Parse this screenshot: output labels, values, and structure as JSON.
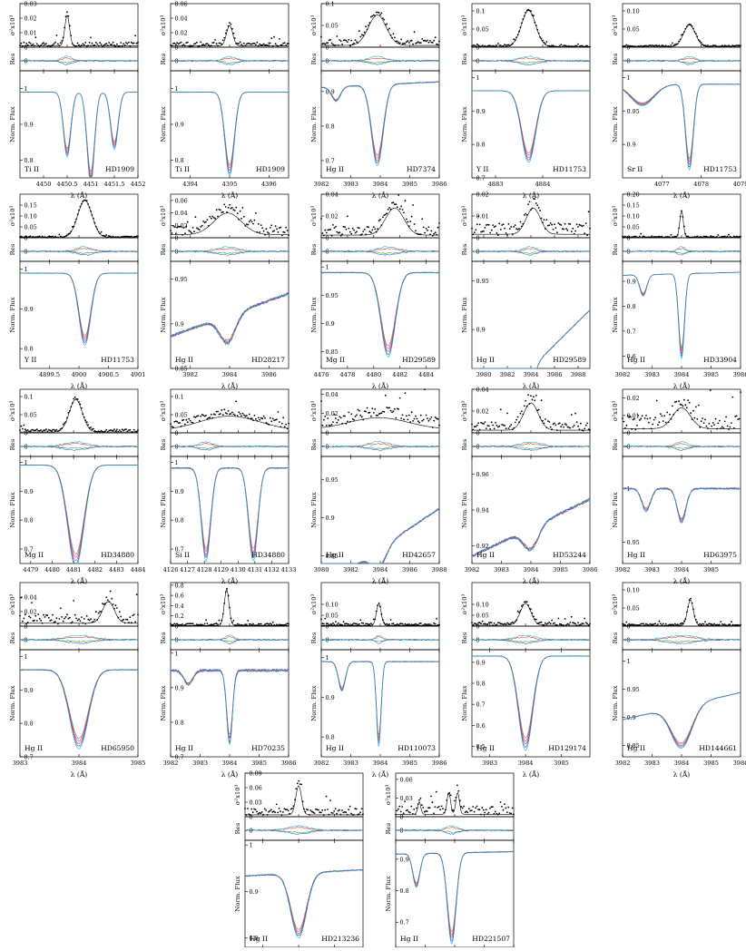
{
  "figure": {
    "xlabel": "λ (Å)",
    "top_ylabel": "σ²x10³",
    "mid_ylabel": "Res",
    "bot_ylabel": "Norm. Flux",
    "colors": {
      "points": "#000000",
      "fit": "#000000",
      "green": "#22aa22",
      "red": "#e03030",
      "blue": "#3050e0",
      "cyan": "#20b0c0",
      "magenta": "#c040c0",
      "olive": "#8a8a20"
    }
  },
  "chart_data": [
    {
      "type": "line",
      "element": "Ti II",
      "star": "HD1909",
      "xlim": [
        4449.5,
        4452
      ],
      "xticks": [
        "4450",
        "4450.5",
        "4451",
        "4451.5",
        "4452"
      ],
      "top_ylim": [
        0,
        0.03
      ],
      "top_ticks": [
        "0",
        "0.01",
        "0.02",
        "0.03"
      ],
      "flux_ylim": [
        0.75,
        1.05
      ],
      "flux_ticks": [
        "0.8",
        "0.9",
        "1"
      ],
      "lines": [
        {
          "c": 4450.5,
          "d": 0.17,
          "w": 0.08
        },
        {
          "c": 4451.0,
          "d": 0.24,
          "w": 0.08
        },
        {
          "c": 4451.5,
          "d": 0.15,
          "w": 0.08
        }
      ],
      "peaks": [
        {
          "c": 4450.5,
          "h": 0.021,
          "w": 0.05
        }
      ],
      "continuum": 0.99,
      "slope": 0,
      "noise": 0.002
    },
    {
      "type": "line",
      "element": "Ti II",
      "star": "HD1909",
      "xlim": [
        4393.5,
        4396.5
      ],
      "xticks": [
        "4394",
        "4395",
        "4396"
      ],
      "top_ylim": [
        0,
        0.06
      ],
      "top_ticks": [
        "0",
        "0.02",
        "0.04",
        "0.06"
      ],
      "flux_ylim": [
        0.75,
        1.05
      ],
      "flux_ticks": [
        "0.8",
        "0.9",
        "1"
      ],
      "lines": [
        {
          "c": 4395.0,
          "d": 0.22,
          "w": 0.12
        }
      ],
      "peaks": [
        {
          "c": 4395.0,
          "h": 0.028,
          "w": 0.08
        }
      ],
      "continuum": 0.99,
      "slope": 0,
      "noise": 0.004
    },
    {
      "type": "line",
      "element": "Hg II",
      "star": "HD7374",
      "xlim": [
        3982,
        3986
      ],
      "xticks": [
        "3982",
        "3983",
        "3984",
        "3985",
        "3986"
      ],
      "top_ylim": [
        0,
        0.1
      ],
      "top_ticks": [
        "0",
        "0.05",
        "0.1"
      ],
      "flux_ylim": [
        0.65,
        0.96
      ],
      "flux_ticks": [
        "0.7",
        "0.8",
        "0.9"
      ],
      "lines": [
        {
          "c": 3983.9,
          "d": 0.22,
          "w": 0.2
        },
        {
          "c": 3982.5,
          "d": 0.04,
          "w": 0.15
        }
      ],
      "peaks": [
        {
          "c": 3983.9,
          "h": 0.07,
          "w": 0.3
        }
      ],
      "continuum": 0.92,
      "slope": 0.004,
      "noise": 0.01
    },
    {
      "type": "line",
      "element": "Y II",
      "star": "HD11753",
      "xlim": [
        4882.5,
        4885
      ],
      "xticks": [
        "4883",
        "4884"
      ],
      "top_ylim": [
        0,
        0.12
      ],
      "top_ticks": [
        "0",
        "0.05",
        "0.1"
      ],
      "flux_ylim": [
        0.7,
        1.02
      ],
      "flux_ticks": [
        "0.7",
        "0.8",
        "0.9",
        "1"
      ],
      "lines": [
        {
          "c": 4883.7,
          "d": 0.2,
          "w": 0.15
        }
      ],
      "peaks": [
        {
          "c": 4883.7,
          "h": 0.1,
          "w": 0.15
        }
      ],
      "continuum": 0.96,
      "slope": 0,
      "noise": 0.003
    },
    {
      "type": "line",
      "element": "Sr II",
      "star": "HD11753",
      "xlim": [
        4076,
        4079
      ],
      "xticks": [
        "4077",
        "4078",
        "4079"
      ],
      "top_ylim": [
        0,
        0.12
      ],
      "top_ticks": [
        "0",
        "0.05",
        "0.10"
      ],
      "flux_ylim": [
        0.85,
        1.01
      ],
      "flux_ticks": [
        "0.9",
        "0.95",
        "1"
      ],
      "lines": [
        {
          "c": 4077.7,
          "d": 0.12,
          "w": 0.1
        },
        {
          "c": 4076.5,
          "d": 0.03,
          "w": 0.3
        }
      ],
      "peaks": [
        {
          "c": 4077.7,
          "h": 0.06,
          "w": 0.15
        }
      ],
      "continuum": 0.99,
      "slope": 0,
      "noise": 0.003
    },
    {
      "type": "line",
      "element": "Y II",
      "star": "HD11753",
      "xlim": [
        4899,
        4901
      ],
      "xticks": [
        "4899.5",
        "4900",
        "4900.5",
        "4901"
      ],
      "top_ylim": [
        0,
        0.2
      ],
      "top_ticks": [
        "0",
        "0.05",
        "0.10",
        "0.15"
      ],
      "flux_ylim": [
        0.75,
        1.02
      ],
      "flux_ticks": [
        "0.8",
        "0.9",
        "1"
      ],
      "lines": [
        {
          "c": 4900.1,
          "d": 0.17,
          "w": 0.1
        }
      ],
      "peaks": [
        {
          "c": 4900.1,
          "h": 0.17,
          "w": 0.12
        }
      ],
      "continuum": 0.99,
      "slope": 0,
      "noise": 0.004
    },
    {
      "type": "line",
      "element": "Hg II",
      "star": "HD28217",
      "xlim": [
        3981,
        3987
      ],
      "xticks": [
        "3982",
        "3984",
        "3986"
      ],
      "top_ylim": [
        0,
        0.07
      ],
      "top_ticks": [
        "0",
        "0.02",
        "0.04",
        "0.06"
      ],
      "flux_ylim": [
        0.85,
        0.97
      ],
      "flux_ticks": [
        "0.85",
        "0.9",
        "0.95"
      ],
      "lines": [
        {
          "c": 3983.9,
          "d": 0.03,
          "w": 0.4
        }
      ],
      "peaks": [
        {
          "c": 3983.9,
          "h": 0.035,
          "w": 0.7
        }
      ],
      "continuum": 0.91,
      "slope": 0.008,
      "noise": 0.012
    },
    {
      "type": "line",
      "element": "Mg II",
      "star": "HD29589",
      "xlim": [
        4476,
        4485
      ],
      "xticks": [
        "4476",
        "4478",
        "4480",
        "4482",
        "4484"
      ],
      "top_ylim": [
        0,
        0.04
      ],
      "top_ticks": [
        "0",
        "0.02",
        "0.04"
      ],
      "flux_ylim": [
        0.82,
        1.01
      ],
      "flux_ticks": [
        "0.85",
        "0.9",
        "0.95",
        "1"
      ],
      "lines": [
        {
          "c": 4481.1,
          "d": 0.14,
          "w": 0.55
        }
      ],
      "peaks": [
        {
          "c": 4481.6,
          "h": 0.025,
          "w": 0.7
        }
      ],
      "continuum": 0.99,
      "slope": 0,
      "noise": 0.006
    },
    {
      "type": "line",
      "element": "Hg II",
      "star": "HD29589",
      "xlim": [
        3979,
        3989
      ],
      "xticks": [
        "3980",
        "3982",
        "3984",
        "3986",
        "3988"
      ],
      "top_ylim": [
        0,
        0.02
      ],
      "top_ticks": [
        "0",
        "0.01",
        "0.02"
      ],
      "flux_ylim": [
        0.86,
        0.97
      ],
      "flux_ticks": [
        "0.9",
        "0.95"
      ],
      "lines": [
        {
          "c": 3983.9,
          "d": 0.02,
          "w": 0.4
        }
      ],
      "peaks": [
        {
          "c": 3984.2,
          "h": 0.012,
          "w": 0.6
        }
      ],
      "continuum": 0.86,
      "slope": 0.012,
      "noise": 0.004
    },
    {
      "type": "line",
      "element": "Hg II",
      "star": "HD33904",
      "xlim": [
        3982,
        3986
      ],
      "xticks": [
        "3982",
        "3983",
        "3984",
        "3985",
        "3986"
      ],
      "top_ylim": [
        0,
        0.2
      ],
      "top_ticks": [
        "0",
        "0.05",
        "0.10",
        "0.15",
        "0.20"
      ],
      "flux_ylim": [
        0.55,
        0.98
      ],
      "flux_ticks": [
        "0.6",
        "0.7",
        "0.8",
        "0.9"
      ],
      "lines": [
        {
          "c": 3984.0,
          "d": 0.32,
          "w": 0.1
        },
        {
          "c": 3982.7,
          "d": 0.08,
          "w": 0.12
        }
      ],
      "peaks": [
        {
          "c": 3984.0,
          "h": 0.12,
          "w": 0.06
        }
      ],
      "continuum": 0.93,
      "slope": 0.003,
      "noise": 0.004
    },
    {
      "type": "line",
      "element": "Mg II",
      "star": "HD34880",
      "xlim": [
        4478.5,
        4484
      ],
      "xticks": [
        "4479",
        "4480",
        "4481",
        "4482",
        "4483",
        "4484"
      ],
      "top_ylim": [
        0,
        0.12
      ],
      "top_ticks": [
        "0",
        "0.05",
        "0.1"
      ],
      "flux_ylim": [
        0.65,
        1.02
      ],
      "flux_ticks": [
        "0.7",
        "0.8",
        "0.9",
        "1"
      ],
      "lines": [
        {
          "c": 4481.1,
          "d": 0.33,
          "w": 0.38
        }
      ],
      "peaks": [
        {
          "c": 4481.1,
          "h": 0.09,
          "w": 0.3
        }
      ],
      "continuum": 0.99,
      "slope": 0,
      "noise": 0.006
    },
    {
      "type": "line",
      "element": "Si II",
      "star": "HD34880",
      "xlim": [
        4126,
        4133
      ],
      "xticks": [
        "4126",
        "4127",
        "4128",
        "4129",
        "4130",
        "4131",
        "4132",
        "4133"
      ],
      "top_ylim": [
        0,
        0.12
      ],
      "top_ticks": [
        "0",
        "0.05",
        "0.1"
      ],
      "flux_ylim": [
        0.65,
        1.02
      ],
      "flux_ticks": [
        "0.7",
        "0.8",
        "0.9",
        "1"
      ],
      "lines": [
        {
          "c": 4128.1,
          "d": 0.3,
          "w": 0.28
        },
        {
          "c": 4130.9,
          "d": 0.3,
          "w": 0.28
        }
      ],
      "peaks": [
        {
          "c": 4129.5,
          "h": 0.04,
          "w": 1.8
        }
      ],
      "continuum": 0.98,
      "slope": 0,
      "noise": 0.015
    },
    {
      "type": "line",
      "element": "Hg II",
      "star": "HD42657",
      "xlim": [
        3980,
        3988
      ],
      "xticks": [
        "3980",
        "3982",
        "3984",
        "3986",
        "3988"
      ],
      "top_ylim": [
        0,
        0.045
      ],
      "top_ticks": [
        "0",
        "0.02",
        "0.04"
      ],
      "flux_ylim": [
        0.84,
        0.98
      ],
      "flux_ticks": [
        "0.85",
        "0.9",
        "0.95"
      ],
      "lines": [
        {
          "c": 3983.9,
          "d": 0.025,
          "w": 0.5
        }
      ],
      "peaks": [
        {
          "c": 3983.9,
          "h": 0.012,
          "w": 2.0
        }
      ],
      "continuum": 0.86,
      "slope": 0.013,
      "noise": 0.009
    },
    {
      "type": "line",
      "element": "Hg II",
      "star": "HD53244",
      "xlim": [
        3982,
        3986
      ],
      "xticks": [
        "3982",
        "3983",
        "3984",
        "3985",
        "3986"
      ],
      "top_ylim": [
        0,
        0.04
      ],
      "top_ticks": [
        "0",
        "0.02",
        "0.04"
      ],
      "flux_ylim": [
        0.91,
        0.97
      ],
      "flux_ticks": [
        "0.92",
        "0.94",
        "0.96"
      ],
      "lines": [
        {
          "c": 3984.0,
          "d": 0.012,
          "w": 0.25
        }
      ],
      "peaks": [
        {
          "c": 3984.0,
          "h": 0.025,
          "w": 0.25
        }
      ],
      "continuum": 0.93,
      "slope": 0.008,
      "noise": 0.006
    },
    {
      "type": "line",
      "element": "Hg II",
      "star": "HD63975",
      "xlim": [
        3982,
        3986
      ],
      "xticks": [
        "3982",
        "3983",
        "3984",
        "3985"
      ],
      "top_ylim": [
        0,
        0.025
      ],
      "top_ticks": [
        "0",
        "0.01",
        "0.02"
      ],
      "flux_ylim": [
        0.93,
        1.03
      ],
      "flux_ticks": [
        "0.95",
        "1"
      ],
      "lines": [
        {
          "c": 3984.0,
          "d": 0.03,
          "w": 0.15
        },
        {
          "c": 3982.8,
          "d": 0.02,
          "w": 0.15
        }
      ],
      "peaks": [
        {
          "c": 3984.0,
          "h": 0.012,
          "w": 0.3
        }
      ],
      "continuum": 1.0,
      "slope": 0,
      "noise": 0.006
    },
    {
      "type": "line",
      "element": "Hg II",
      "star": "HD65950",
      "xlim": [
        3983,
        3985
      ],
      "xticks": [
        "3983",
        "3984",
        "3985"
      ],
      "top_ylim": [
        0,
        0.06
      ],
      "top_ticks": [
        "0",
        "0.02",
        "0.04"
      ],
      "flux_ylim": [
        0.7,
        1.02
      ],
      "flux_ticks": [
        "0.7",
        "0.8",
        "0.9",
        "1"
      ],
      "lines": [
        {
          "c": 3984.0,
          "d": 0.22,
          "w": 0.16
        }
      ],
      "peaks": [
        {
          "c": 3984.5,
          "h": 0.03,
          "w": 0.1
        }
      ],
      "continuum": 0.96,
      "slope": 0,
      "noise": 0.01
    },
    {
      "type": "line",
      "element": "Hg II",
      "star": "HD70235",
      "xlim": [
        3982,
        3986
      ],
      "xticks": [
        "3982",
        "3983",
        "3984",
        "3985",
        "3986"
      ],
      "top_ylim": [
        0,
        0.85
      ],
      "top_ticks": [
        "0",
        "0.2",
        "0.4",
        "0.6",
        "0.8"
      ],
      "flux_ylim": [
        0.7,
        1.01
      ],
      "flux_ticks": [
        "0.7",
        "0.8",
        "0.9",
        "1"
      ],
      "lines": [
        {
          "c": 3984.0,
          "d": 0.2,
          "w": 0.1
        },
        {
          "c": 3982.6,
          "d": 0.04,
          "w": 0.15
        }
      ],
      "peaks": [
        {
          "c": 3983.9,
          "h": 0.7,
          "w": 0.08
        }
      ],
      "continuum": 0.95,
      "slope": 0,
      "noise": 0.03
    },
    {
      "type": "line",
      "element": "Hg II",
      "star": "HD110073",
      "xlim": [
        3982,
        3986
      ],
      "xticks": [
        "3982",
        "3983",
        "3984",
        "3985",
        "3986"
      ],
      "top_ylim": [
        0,
        0.2
      ],
      "top_ticks": [
        "0",
        "0.05",
        "0.10"
      ],
      "flux_ylim": [
        0.75,
        1.02
      ],
      "flux_ticks": [
        "0.8",
        "0.9",
        "1"
      ],
      "lines": [
        {
          "c": 3983.95,
          "d": 0.2,
          "w": 0.08
        },
        {
          "c": 3982.7,
          "d": 0.07,
          "w": 0.12
        }
      ],
      "peaks": [
        {
          "c": 3983.95,
          "h": 0.1,
          "w": 0.08
        }
      ],
      "continuum": 0.99,
      "slope": 0,
      "noise": 0.008
    },
    {
      "type": "line",
      "element": "Hg II",
      "star": "HD129174",
      "xlim": [
        3982.5,
        3985.8
      ],
      "xticks": [
        "3983",
        "3984",
        "3985"
      ],
      "top_ylim": [
        0,
        0.2
      ],
      "top_ticks": [
        "0",
        "0.05",
        "0.10"
      ],
      "flux_ylim": [
        0.45,
        0.96
      ],
      "flux_ticks": [
        "0.5",
        "0.6",
        "0.7",
        "0.8",
        "0.9"
      ],
      "lines": [
        {
          "c": 3984.0,
          "d": 0.42,
          "w": 0.2
        }
      ],
      "peaks": [
        {
          "c": 3984.0,
          "h": 0.1,
          "w": 0.15
        }
      ],
      "continuum": 0.93,
      "slope": 0,
      "noise": 0.01
    },
    {
      "type": "line",
      "element": "Hg II",
      "star": "HD144661",
      "xlim": [
        3982,
        3986
      ],
      "xticks": [
        "3982",
        "3983",
        "3984",
        "3985",
        "3986"
      ],
      "top_ylim": [
        0,
        0.12
      ],
      "top_ticks": [
        "0",
        "0.05",
        "0.10"
      ],
      "flux_ylim": [
        0.83,
        1.02
      ],
      "flux_ticks": [
        "0.85",
        "0.9",
        "0.95",
        "1"
      ],
      "lines": [
        {
          "c": 3984.0,
          "d": 0.07,
          "w": 0.35
        }
      ],
      "peaks": [
        {
          "c": 3984.3,
          "h": 0.07,
          "w": 0.1
        }
      ],
      "continuum": 0.92,
      "slope": 0.012,
      "noise": 0.004
    },
    {
      "type": "line",
      "element": "Hg II",
      "star": "HD213236",
      "xlim": [
        3982.5,
        3985.8
      ],
      "xticks": [
        "3983",
        "3984",
        "3985"
      ],
      "top_ylim": [
        0,
        0.09
      ],
      "top_ticks": [
        "0",
        "0.03",
        "0.06",
        "0.09"
      ],
      "flux_ylim": [
        0.78,
        1.01
      ],
      "flux_ticks": [
        "0.8",
        "0.9",
        "1"
      ],
      "lines": [
        {
          "c": 3984.0,
          "d": 0.13,
          "w": 0.22
        }
      ],
      "peaks": [
        {
          "c": 3984.0,
          "h": 0.06,
          "w": 0.08
        }
      ],
      "continuum": 0.94,
      "slope": 0.004,
      "noise": 0.01
    },
    {
      "type": "line",
      "element": "Hg II",
      "star": "HD221507",
      "xlim": [
        3982,
        3986
      ],
      "xticks": [
        "3982",
        "3983",
        "3984",
        "3985",
        "3986"
      ],
      "top_ylim": [
        0,
        0.07
      ],
      "top_ticks": [
        "0",
        "0.03",
        "0.06"
      ],
      "flux_ylim": [
        0.62,
        0.96
      ],
      "flux_ticks": [
        "0.7",
        "0.8",
        "0.9"
      ],
      "lines": [
        {
          "c": 3983.9,
          "d": 0.27,
          "w": 0.15
        },
        {
          "c": 3982.7,
          "d": 0.1,
          "w": 0.12
        }
      ],
      "peaks": [
        {
          "c": 3983.8,
          "h": 0.035,
          "w": 0.06
        },
        {
          "c": 3984.1,
          "h": 0.035,
          "w": 0.06
        },
        {
          "c": 3982.8,
          "h": 0.02,
          "w": 0.05
        }
      ],
      "continuum": 0.92,
      "slope": 0.002,
      "noise": 0.01
    }
  ]
}
